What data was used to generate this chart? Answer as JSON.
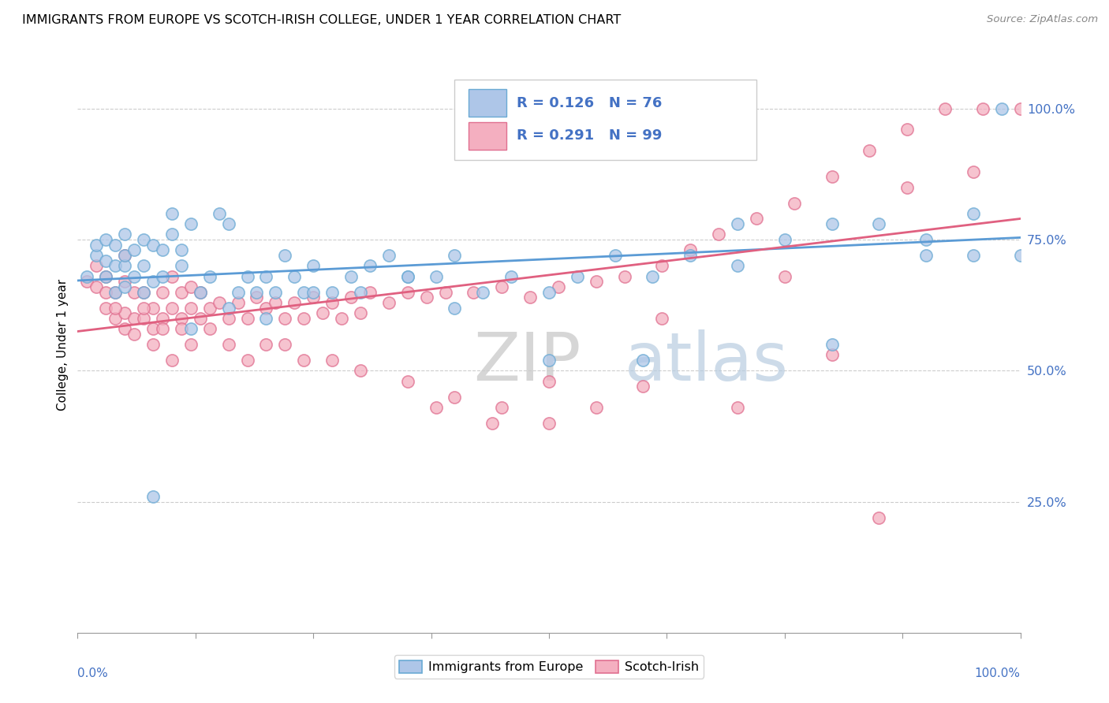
{
  "title": "IMMIGRANTS FROM EUROPE VS SCOTCH-IRISH COLLEGE, UNDER 1 YEAR CORRELATION CHART",
  "source": "Source: ZipAtlas.com",
  "ylabel": "College, Under 1 year",
  "legend_blue_label": "Immigrants from Europe",
  "legend_pink_label": "Scotch-Irish",
  "blue_R": "0.126",
  "blue_N": "76",
  "pink_R": "0.291",
  "pink_N": "99",
  "blue_fill": "#aec6e8",
  "blue_edge": "#6aaad4",
  "pink_fill": "#f4afc0",
  "pink_edge": "#e07090",
  "blue_line": "#5b9bd5",
  "pink_line": "#e06080",
  "legend_r_color": "#4472c4",
  "legend_n_color": "#1a1a1a",
  "ytick_color": "#4472c4",
  "watermark_zip_color": "#d8d8e8",
  "watermark_atlas_color": "#c8d8e8",
  "blue_intercept": 0.672,
  "blue_slope": 0.082,
  "pink_intercept": 0.575,
  "pink_slope": 0.215,
  "blue_x": [
    0.01,
    0.02,
    0.02,
    0.03,
    0.03,
    0.03,
    0.04,
    0.04,
    0.04,
    0.05,
    0.05,
    0.05,
    0.05,
    0.06,
    0.06,
    0.07,
    0.07,
    0.07,
    0.08,
    0.08,
    0.09,
    0.09,
    0.1,
    0.1,
    0.11,
    0.11,
    0.12,
    0.13,
    0.14,
    0.15,
    0.16,
    0.17,
    0.18,
    0.19,
    0.2,
    0.21,
    0.22,
    0.23,
    0.24,
    0.25,
    0.27,
    0.29,
    0.31,
    0.33,
    0.35,
    0.38,
    0.4,
    0.43,
    0.46,
    0.5,
    0.53,
    0.57,
    0.61,
    0.65,
    0.7,
    0.75,
    0.8,
    0.85,
    0.9,
    0.95,
    0.08,
    0.12,
    0.16,
    0.2,
    0.25,
    0.3,
    0.35,
    0.4,
    0.5,
    0.6,
    0.7,
    0.8,
    0.9,
    0.95,
    0.98,
    1.0
  ],
  "blue_y": [
    0.68,
    0.72,
    0.74,
    0.68,
    0.71,
    0.75,
    0.65,
    0.7,
    0.74,
    0.66,
    0.7,
    0.72,
    0.76,
    0.68,
    0.73,
    0.65,
    0.7,
    0.75,
    0.67,
    0.74,
    0.68,
    0.73,
    0.8,
    0.76,
    0.7,
    0.73,
    0.78,
    0.65,
    0.68,
    0.8,
    0.78,
    0.65,
    0.68,
    0.65,
    0.68,
    0.65,
    0.72,
    0.68,
    0.65,
    0.7,
    0.65,
    0.68,
    0.7,
    0.72,
    0.68,
    0.68,
    0.72,
    0.65,
    0.68,
    0.65,
    0.68,
    0.72,
    0.68,
    0.72,
    0.78,
    0.75,
    0.78,
    0.78,
    0.75,
    0.8,
    0.26,
    0.58,
    0.62,
    0.6,
    0.65,
    0.65,
    0.68,
    0.62,
    0.52,
    0.52,
    0.7,
    0.55,
    0.72,
    0.72,
    1.0,
    0.72
  ],
  "pink_x": [
    0.01,
    0.02,
    0.02,
    0.03,
    0.03,
    0.04,
    0.04,
    0.05,
    0.05,
    0.05,
    0.06,
    0.06,
    0.07,
    0.07,
    0.08,
    0.08,
    0.09,
    0.09,
    0.1,
    0.1,
    0.11,
    0.11,
    0.12,
    0.12,
    0.13,
    0.13,
    0.14,
    0.15,
    0.16,
    0.17,
    0.18,
    0.19,
    0.2,
    0.21,
    0.22,
    0.23,
    0.24,
    0.25,
    0.26,
    0.27,
    0.28,
    0.29,
    0.3,
    0.31,
    0.33,
    0.35,
    0.37,
    0.39,
    0.42,
    0.45,
    0.48,
    0.51,
    0.55,
    0.58,
    0.62,
    0.65,
    0.68,
    0.72,
    0.76,
    0.8,
    0.84,
    0.88,
    0.92,
    0.96,
    1.0,
    0.03,
    0.04,
    0.05,
    0.06,
    0.07,
    0.08,
    0.09,
    0.1,
    0.11,
    0.12,
    0.14,
    0.16,
    0.18,
    0.2,
    0.22,
    0.24,
    0.27,
    0.3,
    0.35,
    0.4,
    0.45,
    0.5,
    0.55,
    0.6,
    0.7,
    0.8,
    0.85,
    0.38,
    0.44,
    0.5,
    0.62,
    0.75,
    0.88,
    0.95
  ],
  "pink_y": [
    0.67,
    0.66,
    0.7,
    0.62,
    0.68,
    0.6,
    0.65,
    0.61,
    0.67,
    0.72,
    0.6,
    0.65,
    0.6,
    0.65,
    0.58,
    0.62,
    0.6,
    0.65,
    0.62,
    0.68,
    0.6,
    0.65,
    0.62,
    0.66,
    0.6,
    0.65,
    0.62,
    0.63,
    0.6,
    0.63,
    0.6,
    0.64,
    0.62,
    0.63,
    0.6,
    0.63,
    0.6,
    0.64,
    0.61,
    0.63,
    0.6,
    0.64,
    0.61,
    0.65,
    0.63,
    0.65,
    0.64,
    0.65,
    0.65,
    0.66,
    0.64,
    0.66,
    0.67,
    0.68,
    0.7,
    0.73,
    0.76,
    0.79,
    0.82,
    0.87,
    0.92,
    0.96,
    1.0,
    1.0,
    1.0,
    0.65,
    0.62,
    0.58,
    0.57,
    0.62,
    0.55,
    0.58,
    0.52,
    0.58,
    0.55,
    0.58,
    0.55,
    0.52,
    0.55,
    0.55,
    0.52,
    0.52,
    0.5,
    0.48,
    0.45,
    0.43,
    0.48,
    0.43,
    0.47,
    0.43,
    0.53,
    0.22,
    0.43,
    0.4,
    0.4,
    0.6,
    0.68,
    0.85,
    0.88
  ]
}
